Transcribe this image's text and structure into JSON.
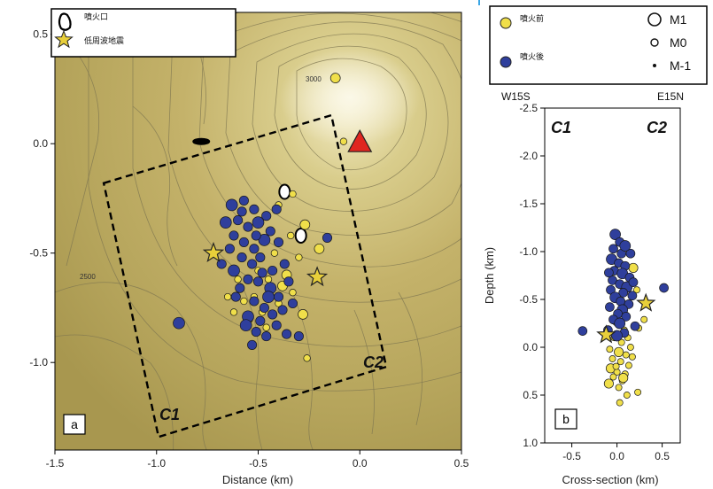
{
  "chart_data": [
    {
      "panel": "a",
      "type": "scatter",
      "xlabel": "Distance (km)",
      "xlim": [
        -1.5,
        0.5
      ],
      "ylim": [
        -1.4,
        0.6
      ],
      "xticks": [
        "-1.5",
        "-1.0",
        "-0.5",
        "0.0",
        "0.5"
      ],
      "yticks": [
        "0.5",
        "0.0",
        "-0.5",
        "-1.0"
      ],
      "panel_label": "a",
      "corner_labels": [
        "C1",
        "C2"
      ],
      "contour_labels": [
        "3000",
        "2500"
      ],
      "legend": {
        "crater": "噴火口",
        "lf_quake": "低周波地震"
      },
      "series": [
        {
          "name": "噴火前",
          "color": "#f0df4a",
          "points": [
            [
              -0.55,
              -0.8
            ],
            [
              -0.48,
              -0.77
            ],
            [
              -0.4,
              -0.73
            ],
            [
              -0.33,
              -0.68
            ],
            [
              -0.28,
              -0.78
            ],
            [
              -0.62,
              -0.77
            ],
            [
              -0.52,
              -0.7
            ],
            [
              -0.45,
              -0.62
            ],
            [
              -0.36,
              -0.6
            ],
            [
              -0.3,
              -0.52
            ],
            [
              -0.4,
              -0.28
            ],
            [
              -0.33,
              -0.23
            ],
            [
              -0.27,
              -0.37
            ],
            [
              -0.6,
              -0.62
            ],
            [
              -0.42,
              -0.5
            ],
            [
              -0.26,
              -0.98
            ],
            [
              -0.12,
              0.3
            ],
            [
              -0.08,
              0.01
            ],
            [
              -0.57,
              -0.72
            ],
            [
              -0.46,
              -0.84
            ],
            [
              -0.38,
              -0.65
            ],
            [
              -0.5,
              -0.58
            ],
            [
              -0.34,
              -0.42
            ],
            [
              -0.65,
              -0.7
            ],
            [
              -0.2,
              -0.48
            ]
          ]
        },
        {
          "name": "噴火後",
          "color": "#2f3f9c",
          "points": [
            [
              -0.63,
              -0.28
            ],
            [
              -0.57,
              -0.26
            ],
            [
              -0.52,
              -0.3
            ],
            [
              -0.6,
              -0.35
            ],
            [
              -0.55,
              -0.38
            ],
            [
              -0.5,
              -0.36
            ],
            [
              -0.46,
              -0.33
            ],
            [
              -0.62,
              -0.42
            ],
            [
              -0.57,
              -0.45
            ],
            [
              -0.52,
              -0.48
            ],
            [
              -0.47,
              -0.44
            ],
            [
              -0.58,
              -0.52
            ],
            [
              -0.53,
              -0.55
            ],
            [
              -0.49,
              -0.52
            ],
            [
              -0.44,
              -0.4
            ],
            [
              -0.66,
              -0.36
            ],
            [
              -0.41,
              -0.3
            ],
            [
              -0.55,
              -0.62
            ],
            [
              -0.59,
              -0.66
            ],
            [
              -0.5,
              -0.63
            ],
            [
              -0.44,
              -0.66
            ],
            [
              -0.4,
              -0.7
            ],
            [
              -0.52,
              -0.72
            ],
            [
              -0.47,
              -0.75
            ],
            [
              -0.43,
              -0.78
            ],
            [
              -0.55,
              -0.79
            ],
            [
              -0.49,
              -0.81
            ],
            [
              -0.41,
              -0.83
            ],
            [
              -0.51,
              -0.86
            ],
            [
              -0.46,
              -0.88
            ],
            [
              -0.56,
              -0.83
            ],
            [
              -0.38,
              -0.76
            ],
            [
              -0.36,
              -0.87
            ],
            [
              -0.33,
              -0.73
            ],
            [
              -0.48,
              -0.59
            ],
            [
              -0.62,
              -0.58
            ],
            [
              -0.68,
              -0.55
            ],
            [
              -0.37,
              -0.55
            ],
            [
              -0.4,
              -0.45
            ],
            [
              -0.3,
              -0.88
            ],
            [
              -0.89,
              -0.82
            ],
            [
              -0.16,
              -0.43
            ],
            [
              -0.35,
              -0.63
            ],
            [
              -0.61,
              -0.7
            ],
            [
              -0.53,
              -0.92
            ],
            [
              -0.45,
              -0.7
            ],
            [
              -0.58,
              -0.31
            ],
            [
              -0.51,
              -0.42
            ],
            [
              -0.43,
              -0.58
            ],
            [
              -0.64,
              -0.48
            ]
          ]
        }
      ],
      "lf_events": [
        [
          -0.72,
          -0.5
        ],
        [
          -0.21,
          -0.61
        ]
      ],
      "vent_marker": [
        0.0,
        0.0
      ],
      "craters": [
        [
          -0.37,
          -0.22
        ],
        [
          -0.29,
          -0.42
        ],
        [
          -0.78,
          0.01
        ]
      ],
      "cross_section_box": [
        [
          -1.26,
          -0.18
        ],
        [
          -0.14,
          0.13
        ],
        [
          0.13,
          -1.02
        ],
        [
          -0.99,
          -1.34
        ]
      ]
    },
    {
      "panel": "b",
      "type": "scatter",
      "xlabel": "Cross-section (km)",
      "ylabel": "Depth (km)",
      "xlim": [
        -0.8,
        0.7
      ],
      "ylim": [
        -2.5,
        1.0
      ],
      "xticks": [
        "-0.5",
        "0.0",
        "0.5"
      ],
      "yticks": [
        "-2.5",
        "-2.0",
        "-1.5",
        "-1.0",
        "-0.5",
        "0.0",
        "0.5",
        "1.0"
      ],
      "panel_label": "b",
      "corner_labels": [
        "C1",
        "C2"
      ],
      "direction_labels": [
        "W15S",
        "E15N"
      ],
      "legend": {
        "size_labels": [
          "M1",
          "M0",
          "M-1"
        ]
      },
      "series": [
        {
          "name": "噴火前",
          "color": "#f0df4a",
          "points": [
            [
              0.0,
              -0.27
            ],
            [
              0.08,
              -0.18
            ],
            [
              -0.03,
              -0.1
            ],
            [
              0.05,
              -0.05
            ],
            [
              -0.08,
              0.02
            ],
            [
              0.02,
              0.05
            ],
            [
              0.1,
              0.08
            ],
            [
              -0.05,
              0.12
            ],
            [
              0.04,
              0.15
            ],
            [
              0.13,
              0.19
            ],
            [
              -0.07,
              0.22
            ],
            [
              0.0,
              0.26
            ],
            [
              0.09,
              0.28
            ],
            [
              -0.04,
              0.31
            ],
            [
              0.06,
              0.35
            ],
            [
              -0.09,
              0.38
            ],
            [
              0.02,
              0.42
            ],
            [
              0.23,
              0.47
            ],
            [
              0.11,
              0.5
            ],
            [
              0.03,
              0.58
            ],
            [
              0.18,
              -0.83
            ],
            [
              0.22,
              -0.6
            ],
            [
              -0.02,
              -0.5
            ],
            [
              0.3,
              -0.29
            ],
            [
              0.15,
              0.0
            ],
            [
              0.07,
              0.32
            ],
            [
              -0.01,
              0.2
            ],
            [
              0.12,
              -0.1
            ],
            [
              0.17,
              0.1
            ],
            [
              0.24,
              -0.2
            ]
          ]
        },
        {
          "name": "噴火後",
          "color": "#2f3f9c",
          "points": [
            [
              -0.02,
              -1.18
            ],
            [
              0.03,
              -1.1
            ],
            [
              -0.04,
              -1.03
            ],
            [
              0.05,
              -0.98
            ],
            [
              -0.06,
              -0.92
            ],
            [
              0.02,
              -0.88
            ],
            [
              0.09,
              -0.85
            ],
            [
              -0.03,
              -0.8
            ],
            [
              0.06,
              -0.77
            ],
            [
              0.14,
              -0.73
            ],
            [
              -0.05,
              -0.7
            ],
            [
              0.03,
              -0.66
            ],
            [
              0.11,
              -0.63
            ],
            [
              -0.07,
              -0.6
            ],
            [
              0.07,
              -0.57
            ],
            [
              0.17,
              -0.54
            ],
            [
              -0.02,
              -0.52
            ],
            [
              0.04,
              -0.48
            ],
            [
              0.13,
              -0.45
            ],
            [
              -0.08,
              -0.42
            ],
            [
              0.06,
              -0.39
            ],
            [
              0.01,
              -0.35
            ],
            [
              0.1,
              -0.32
            ],
            [
              -0.04,
              -0.29
            ],
            [
              0.03,
              -0.25
            ],
            [
              0.2,
              -0.22
            ],
            [
              -0.1,
              -0.18
            ],
            [
              0.08,
              -0.15
            ],
            [
              0.0,
              -0.12
            ],
            [
              -0.38,
              -0.17
            ],
            [
              0.52,
              -0.62
            ],
            [
              0.15,
              -0.98
            ],
            [
              0.09,
              -1.06
            ],
            [
              -0.09,
              -0.78
            ],
            [
              0.18,
              -0.68
            ]
          ]
        }
      ],
      "lf_events": [
        [
          -0.12,
          -0.13
        ],
        [
          0.32,
          -0.46
        ]
      ]
    }
  ]
}
